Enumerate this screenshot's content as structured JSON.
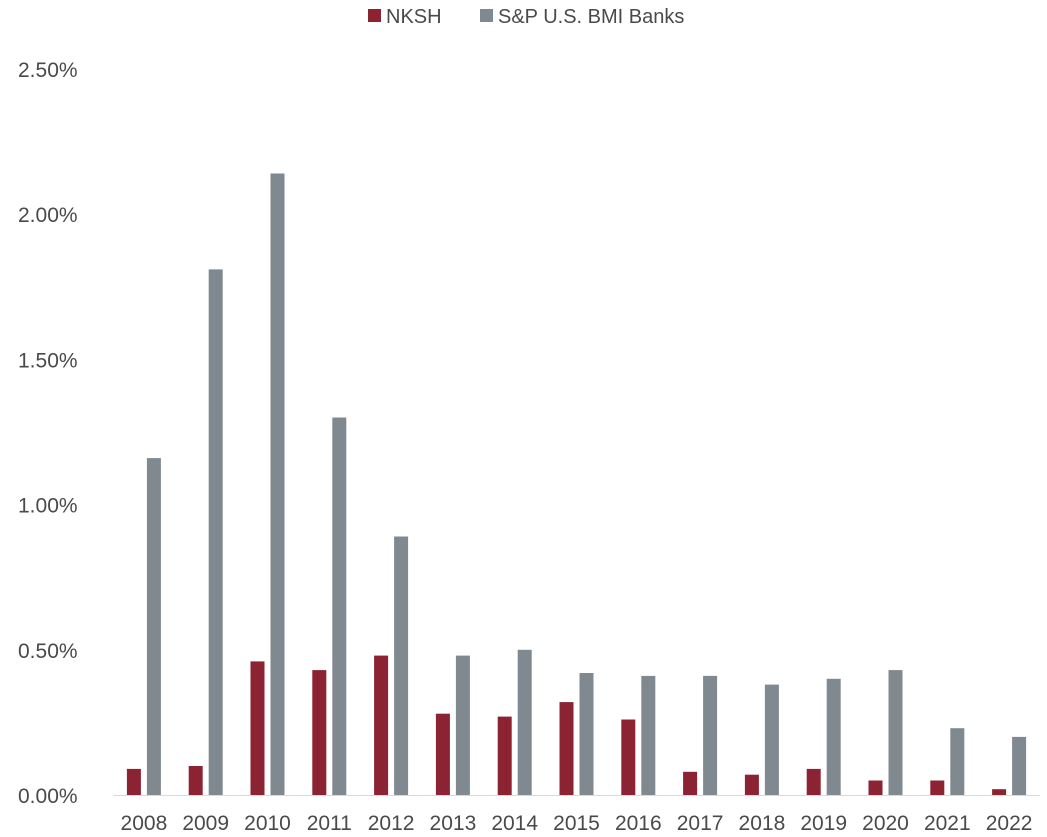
{
  "chart_data": {
    "type": "bar",
    "title": "",
    "xlabel": "",
    "ylabel": "",
    "categories": [
      "2008",
      "2009",
      "2010",
      "2011",
      "2012",
      "2013",
      "2014",
      "2015",
      "2016",
      "2017",
      "2018",
      "2019",
      "2020",
      "2021",
      "2022"
    ],
    "series": [
      {
        "name": "NKSH",
        "color": "#8b2332",
        "values": [
          0.09,
          0.1,
          0.46,
          0.43,
          0.48,
          0.28,
          0.27,
          0.32,
          0.26,
          0.08,
          0.07,
          0.09,
          0.05,
          0.05,
          0.02
        ]
      },
      {
        "name": "S&P U.S. BMI Banks",
        "color": "#80898f",
        "values": [
          1.16,
          1.81,
          2.14,
          1.3,
          0.89,
          0.48,
          0.5,
          0.42,
          0.41,
          0.41,
          0.38,
          0.4,
          0.43,
          0.23,
          0.2
        ]
      }
    ],
    "ylim": [
      0,
      2.5
    ],
    "yticks": [
      "0.00%",
      "0.50%",
      "1.00%",
      "1.50%",
      "2.00%",
      "2.50%"
    ],
    "ytick_values": [
      0,
      0.5,
      1.0,
      1.5,
      2.0,
      2.5
    ],
    "grid": false,
    "legend_position": "top-center"
  }
}
